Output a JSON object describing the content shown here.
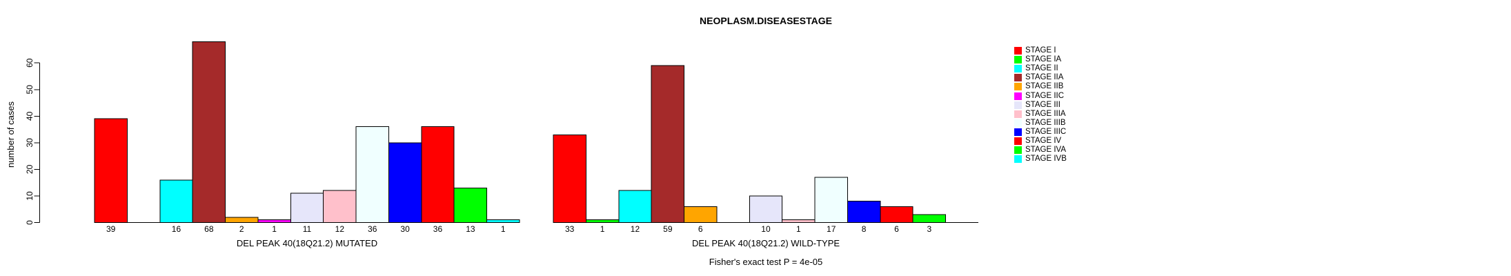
{
  "figure": {
    "title": "NEOPLASM.DISEASESTAGE",
    "ylabel": "number of cases",
    "footer": "Fisher's exact test P = 4e-05"
  },
  "legend": {
    "position": "right",
    "items": [
      {
        "label": "STAGE I",
        "color": "#FF0000"
      },
      {
        "label": "STAGE IA",
        "color": "#00FF00"
      },
      {
        "label": "STAGE II",
        "color": "#00FFFF"
      },
      {
        "label": "STAGE IIA",
        "color": "#A52A2A"
      },
      {
        "label": "STAGE IIB",
        "color": "#FFA500"
      },
      {
        "label": "STAGE IIC",
        "color": "#FF00FF"
      },
      {
        "label": "STAGE III",
        "color": "#E6E6FA"
      },
      {
        "label": "STAGE IIIA",
        "color": "#FFC0CB"
      },
      {
        "label": "STAGE IIIB",
        "color": "#F0FFFF"
      },
      {
        "label": "STAGE IIIC",
        "color": "#0000FF"
      },
      {
        "label": "STAGE IV",
        "color": "#FF0000"
      },
      {
        "label": "STAGE IVA",
        "color": "#00FF00"
      },
      {
        "label": "STAGE IVB",
        "color": "#00FFFF"
      }
    ]
  },
  "chart_data": {
    "type": "bar",
    "title": "NEOPLASM.DISEASESTAGE",
    "ylabel": "number of cases",
    "ylim": [
      0,
      60
    ],
    "yticks": [
      0,
      10,
      20,
      30,
      40,
      50,
      60
    ],
    "grid": false,
    "legend_position": "right",
    "bar_value_labels": true,
    "categories": [
      "STAGE I",
      "STAGE IA",
      "STAGE II",
      "STAGE IIA",
      "STAGE IIB",
      "STAGE IIC",
      "STAGE III",
      "STAGE IIIA",
      "STAGE IIIB",
      "STAGE IIIC",
      "STAGE IV",
      "STAGE IVA",
      "STAGE IVB"
    ],
    "colors": [
      "#FF0000",
      "#00FF00",
      "#00FFFF",
      "#A52A2A",
      "#FFA500",
      "#FF00FF",
      "#E6E6FA",
      "#FFC0CB",
      "#F0FFFF",
      "#0000FF",
      "#FF0000",
      "#00FF00",
      "#00FFFF"
    ],
    "series": [
      {
        "name": "DEL PEAK 40(18Q21.2) MUTATED",
        "values": [
          39,
          0,
          16,
          68,
          2,
          1,
          11,
          12,
          36,
          30,
          36,
          13,
          1
        ]
      },
      {
        "name": "DEL PEAK 40(18Q21.2) WILD-TYPE",
        "values": [
          33,
          1,
          12,
          59,
          6,
          0,
          10,
          1,
          17,
          8,
          6,
          3,
          0
        ]
      }
    ],
    "annotation": "Fisher's exact test P = 4e-05"
  }
}
